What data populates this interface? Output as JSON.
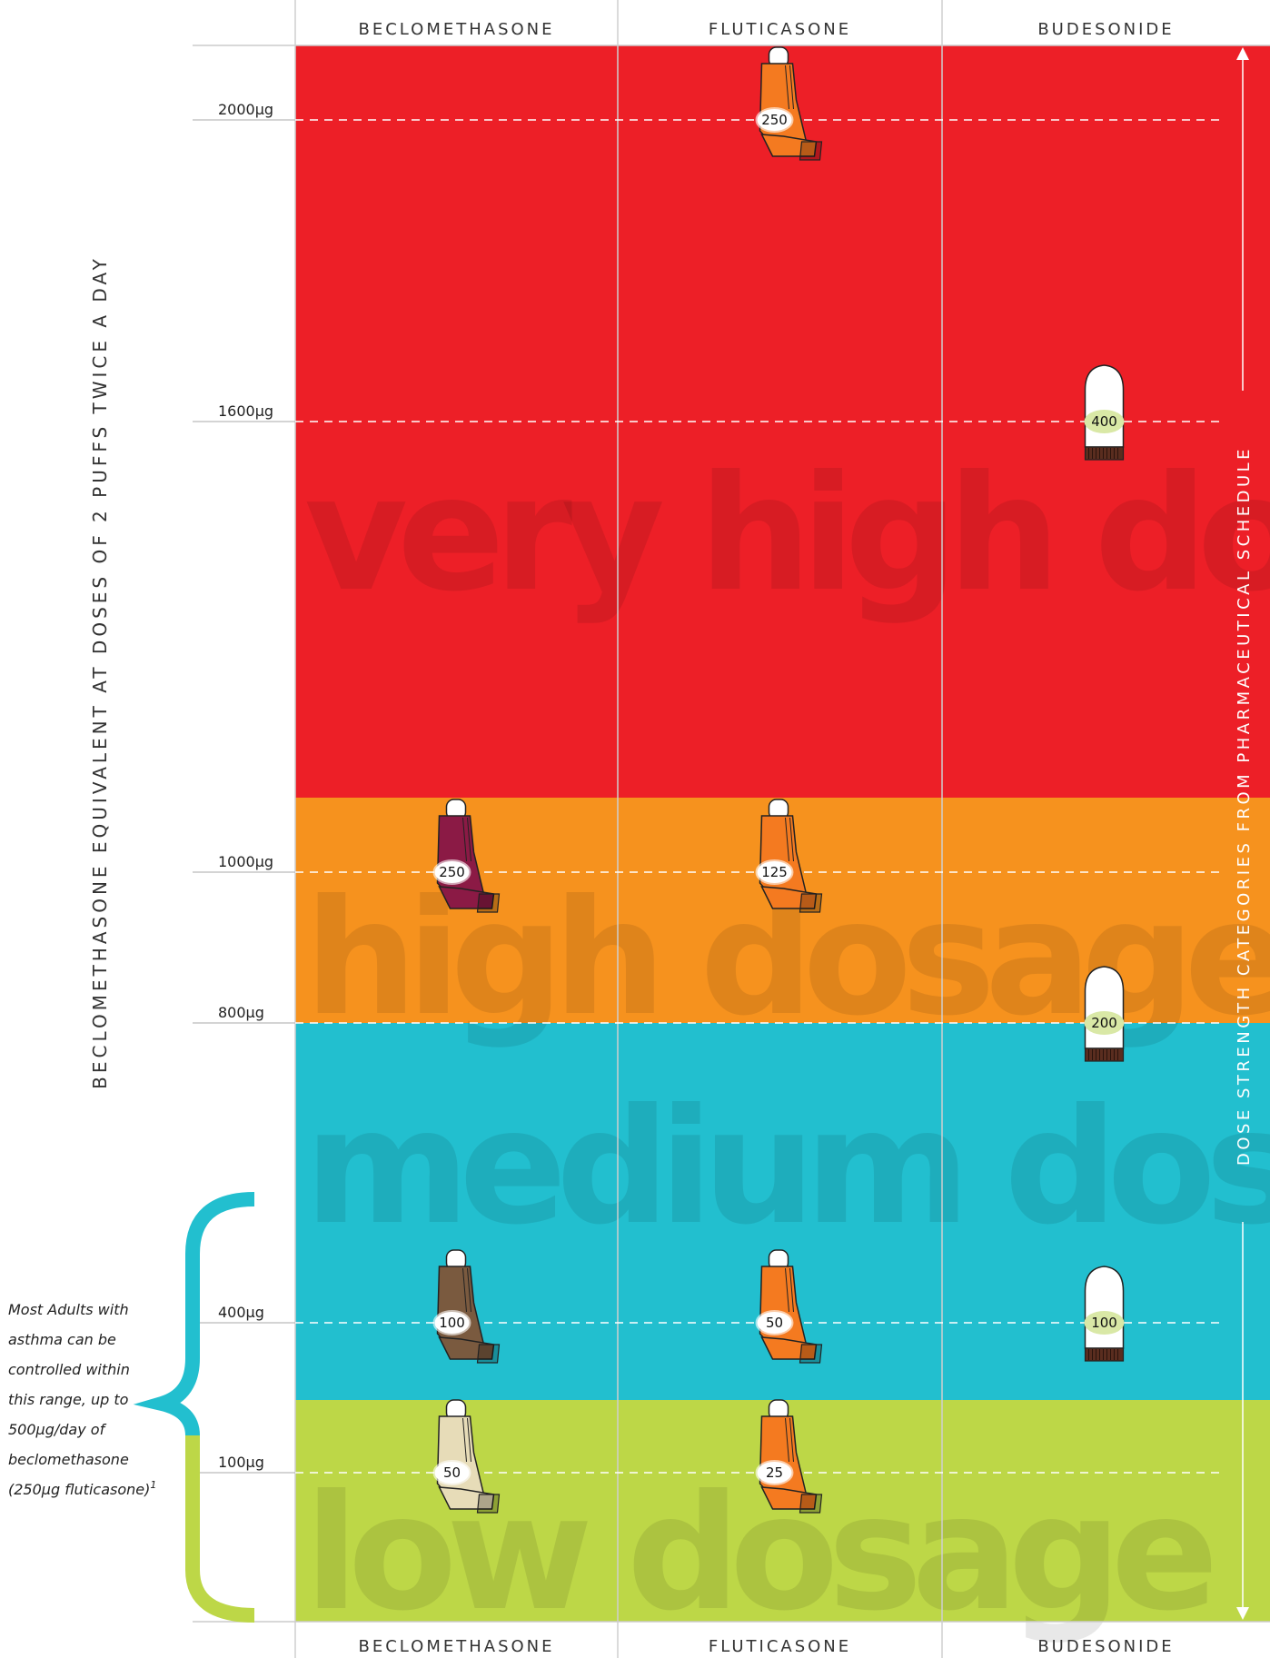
{
  "chart_data": {
    "type": "table",
    "columns": [
      "BECLOMETHASONE",
      "FLUTICASONE",
      "BUDESONIDE"
    ],
    "y_axis_label": "BECLOMETHASONE EQUIVALENT AT DOSES OF 2 PUFFS TWICE A DAY",
    "right_axis_label": "DOSE STRENGTH CATEGORIES FROM PHARMACEUTICAL SCHEDULE",
    "dose_levels": [
      "2000µg",
      "1600µg",
      "1000µg",
      "800µg",
      "400µg",
      "100µg"
    ],
    "bands": [
      {
        "name": "very high dosage",
        "color": "#ed1f27"
      },
      {
        "name": "high dosage",
        "color": "#f6921e"
      },
      {
        "name": "medium dosage",
        "color": "#22bfcf"
      },
      {
        "name": "low dosage",
        "color": "#bdd747"
      }
    ],
    "inhalers": [
      {
        "drug": "FLUTICASONE",
        "strength": "250",
        "dose": "2000µg",
        "device": "metered-dose",
        "color": "#f47a20"
      },
      {
        "drug": "BUDESONIDE",
        "strength": "400",
        "dose": "1600µg",
        "device": "turbuhaler",
        "color": "#ffffff"
      },
      {
        "drug": "BECLOMETHASONE",
        "strength": "250",
        "dose": "1000µg",
        "device": "metered-dose",
        "color": "#8b1a45"
      },
      {
        "drug": "FLUTICASONE",
        "strength": "125",
        "dose": "1000µg",
        "device": "metered-dose",
        "color": "#f47a20"
      },
      {
        "drug": "BUDESONIDE",
        "strength": "200",
        "dose": "800µg",
        "device": "turbuhaler",
        "color": "#ffffff"
      },
      {
        "drug": "BECLOMETHASONE",
        "strength": "100",
        "dose": "400µg",
        "device": "metered-dose",
        "color": "#7a5a3f"
      },
      {
        "drug": "FLUTICASONE",
        "strength": "50",
        "dose": "400µg",
        "device": "metered-dose",
        "color": "#f47a20"
      },
      {
        "drug": "BUDESONIDE",
        "strength": "100",
        "dose": "400µg",
        "device": "turbuhaler",
        "color": "#ffffff"
      },
      {
        "drug": "BECLOMETHASONE",
        "strength": "50",
        "dose": "100µg",
        "device": "metered-dose",
        "color": "#e7dcb8"
      },
      {
        "drug": "FLUTICASONE",
        "strength": "25",
        "dose": "100µg",
        "device": "metered-dose",
        "color": "#f47a20"
      }
    ],
    "note": [
      "Most Adults with",
      "asthma can be",
      "controlled within",
      "this range, up to",
      "500µg/day of",
      "beclomethasone",
      "(250µg fluticasone)"
    ],
    "note_ref": "1"
  }
}
